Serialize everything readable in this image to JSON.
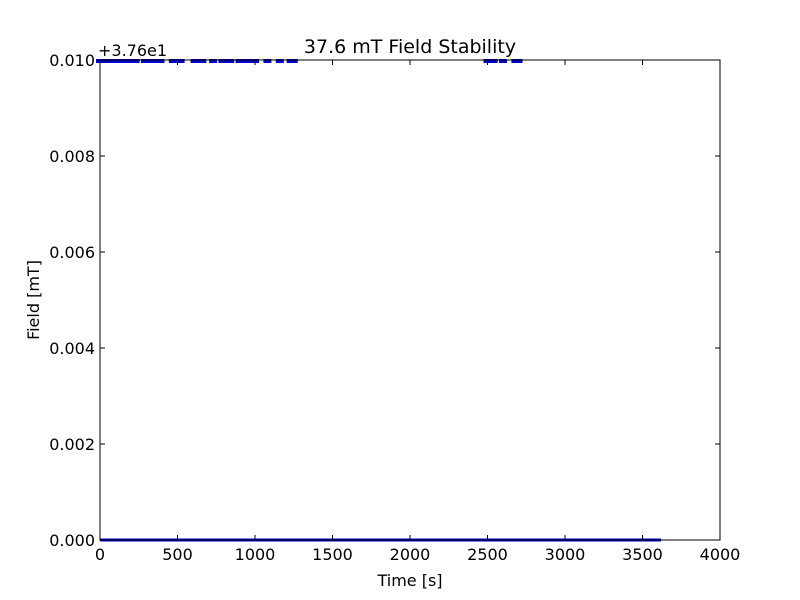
{
  "chart_data": {
    "type": "line",
    "title": "37.6 mT Field Stability",
    "xlabel": "Time [s]",
    "ylabel": "Field [mT]",
    "offset_label": "+3.76e1",
    "xlim": [
      0,
      4000
    ],
    "ylim": [
      0,
      0.01
    ],
    "xticks": [
      0,
      500,
      1000,
      1500,
      2000,
      2500,
      3000,
      3500,
      4000
    ],
    "xtick_labels": [
      "0",
      "500",
      "1000",
      "1500",
      "2000",
      "2500",
      "3000",
      "3500",
      "4000"
    ],
    "yticks": [
      0,
      0.002,
      0.004,
      0.006,
      0.008,
      0.01
    ],
    "ytick_labels": [
      "0.000",
      "0.002",
      "0.004",
      "0.006",
      "0.008",
      "0.010"
    ],
    "grid": false,
    "series": [
      {
        "color": "#0000cc",
        "points": [
          [
            0,
            0.0
          ],
          [
            3620,
            0.0
          ]
        ]
      },
      {
        "color": "#0000cc",
        "points": [
          [
            0,
            0.01
          ],
          [
            40,
            0.01
          ],
          [
            90,
            0.01
          ],
          [
            130,
            0.01
          ],
          [
            180,
            0.01
          ],
          [
            230,
            0.01
          ],
          [
            290,
            0.01
          ],
          [
            340,
            0.01
          ],
          [
            390,
            0.01
          ],
          [
            470,
            0.01
          ],
          [
            520,
            0.01
          ],
          [
            610,
            0.01
          ],
          [
            660,
            0.01
          ],
          [
            730,
            0.01
          ],
          [
            790,
            0.01
          ],
          [
            840,
            0.01
          ],
          [
            900,
            0.01
          ],
          [
            950,
            0.01
          ],
          [
            1000,
            0.01
          ],
          [
            1080,
            0.01
          ],
          [
            1160,
            0.01
          ],
          [
            1230,
            0.01
          ],
          [
            1250,
            0.01
          ],
          [
            2500,
            0.01
          ],
          [
            2540,
            0.01
          ],
          [
            2600,
            0.01
          ],
          [
            2680,
            0.01
          ],
          [
            2700,
            0.01
          ]
        ]
      }
    ]
  }
}
